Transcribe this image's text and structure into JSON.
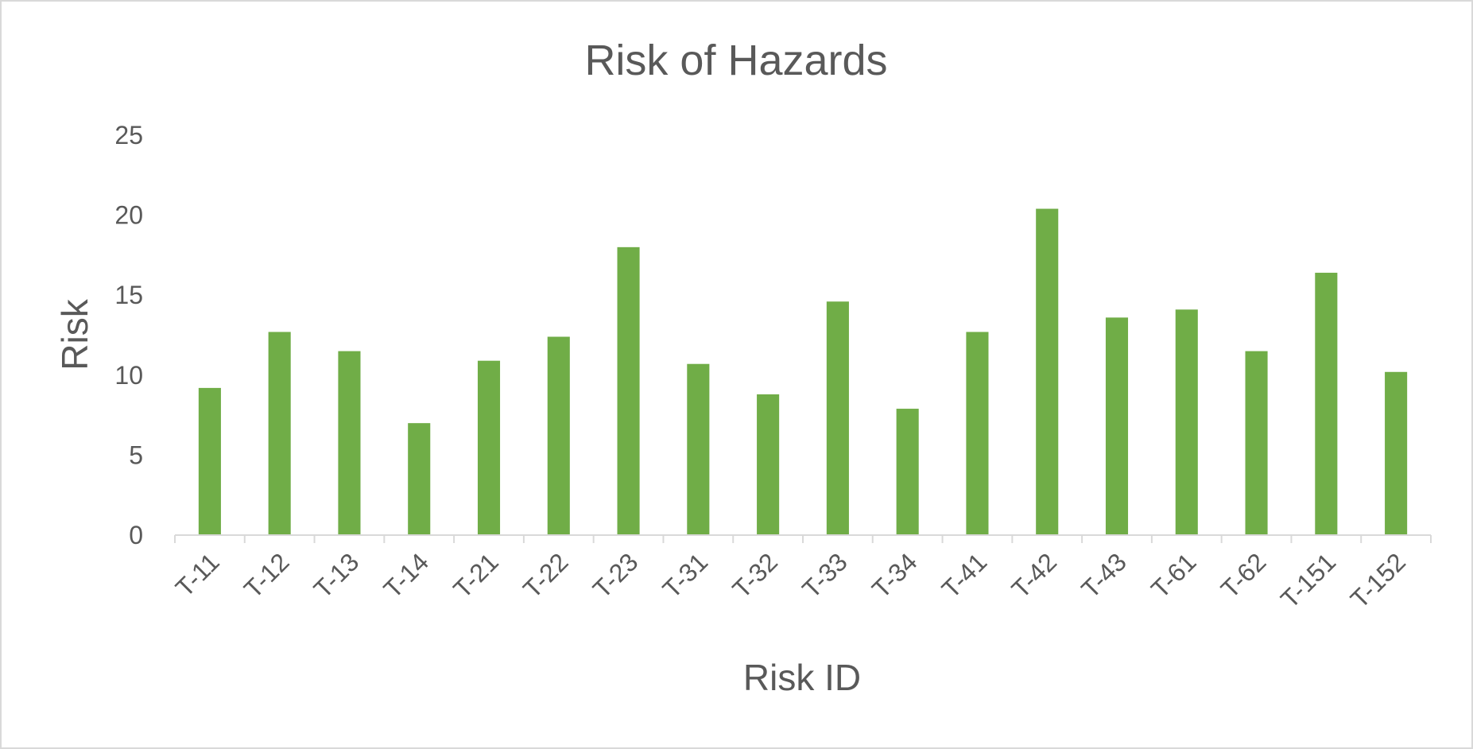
{
  "chart_data": {
    "type": "bar",
    "title": "Risk of Hazards",
    "xlabel": "Risk ID",
    "ylabel": "Risk",
    "categories": [
      "T-11",
      "T-12",
      "T-13",
      "T-14",
      "T-21",
      "T-22",
      "T-23",
      "T-31",
      "T-32",
      "T-33",
      "T-34",
      "T-41",
      "T-42",
      "T-43",
      "T-61",
      "T-62",
      "T-151",
      "T-152"
    ],
    "values": [
      9.2,
      12.7,
      11.5,
      7.0,
      10.9,
      12.4,
      18.0,
      10.7,
      8.8,
      14.6,
      7.9,
      12.7,
      20.4,
      13.6,
      14.1,
      11.5,
      16.4,
      10.2
    ],
    "ylim": [
      0,
      25
    ],
    "yticks": [
      0,
      5,
      10,
      15,
      20,
      25
    ],
    "grid": false,
    "legend": "none",
    "bar_color": "#70ad47",
    "axis_color": "#d9d9d9",
    "text_color": "#595959"
  }
}
